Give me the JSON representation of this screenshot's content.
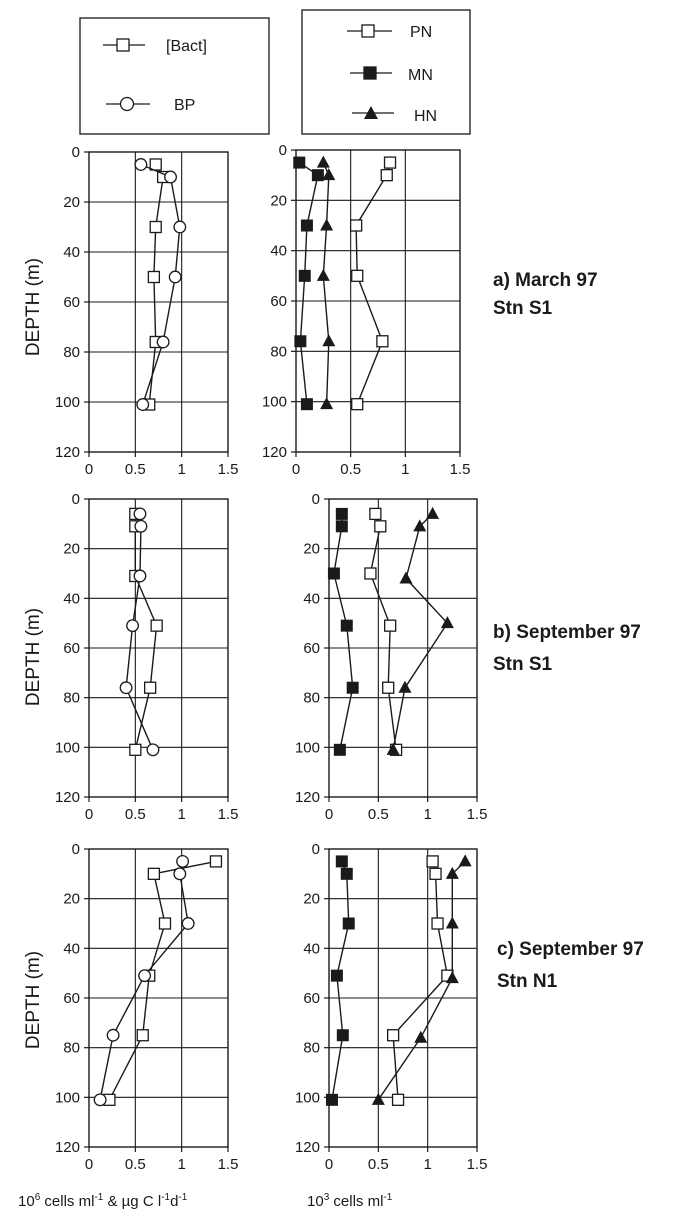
{
  "legend_left": [
    {
      "name": "[Bact]",
      "marker": "square-open"
    },
    {
      "name": "BP",
      "marker": "circle-open"
    }
  ],
  "legend_right": [
    {
      "name": "PN",
      "marker": "square-open"
    },
    {
      "name": "MN",
      "marker": "square-filled"
    },
    {
      "name": "HN",
      "marker": "triangle-filled"
    }
  ],
  "y_axis_label": "DEPTH (m)",
  "x_axis_label_left": {
    "pre": "10",
    "sup": "6",
    "text": " cells ml",
    "sup2": "-1",
    "text2": " & µg C l",
    "sup3": "-1",
    "text3": "d",
    "sup4": "-1"
  },
  "x_axis_label_right": {
    "pre": "10",
    "sup": "3",
    "text": " cells ml",
    "sup2": "-1"
  },
  "panel_labels": [
    {
      "line1": "a) March 97",
      "line2": "Stn S1"
    },
    {
      "line1": "b) September 97",
      "line2": "Stn S1"
    },
    {
      "line1": "c) September 97",
      "line2": "Stn N1"
    }
  ],
  "colors": {
    "ink": "#1a1a1a",
    "background": "#ffffff"
  },
  "chart_data": [
    {
      "type": "line",
      "panel": "a",
      "side": "left",
      "x_label": "",
      "y_label": "DEPTH (m)",
      "xlim": [
        0,
        1.5
      ],
      "ylim": [
        0,
        120
      ],
      "y_inverted": true,
      "xticks": [
        "0",
        "0.5",
        "1",
        "1.5"
      ],
      "yticks": [
        "0",
        "20",
        "40",
        "60",
        "80",
        "100",
        "120"
      ],
      "grid": true,
      "series": [
        {
          "name": "[Bact]",
          "marker": "square-open",
          "points": [
            [
              0.72,
              5
            ],
            [
              0.8,
              10
            ],
            [
              0.72,
              30
            ],
            [
              0.7,
              50
            ],
            [
              0.72,
              76
            ],
            [
              0.65,
              101
            ]
          ]
        },
        {
          "name": "BP",
          "marker": "circle-open",
          "points": [
            [
              0.56,
              5
            ],
            [
              0.88,
              10
            ],
            [
              0.98,
              30
            ],
            [
              0.93,
              50
            ],
            [
              0.8,
              76
            ],
            [
              0.58,
              101
            ]
          ]
        }
      ]
    },
    {
      "type": "line",
      "panel": "a",
      "side": "right",
      "x_label": "",
      "y_label": "",
      "xlim": [
        0,
        1.5
      ],
      "ylim": [
        0,
        120
      ],
      "y_inverted": true,
      "xticks": [
        "0",
        "0.5",
        "1",
        "1.5"
      ],
      "yticks": [
        "0",
        "20",
        "40",
        "60",
        "80",
        "100",
        "120"
      ],
      "grid": true,
      "series": [
        {
          "name": "PN",
          "marker": "square-open",
          "points": [
            [
              0.86,
              5
            ],
            [
              0.83,
              10
            ],
            [
              0.55,
              30
            ],
            [
              0.56,
              50
            ],
            [
              0.79,
              76
            ],
            [
              0.56,
              101
            ]
          ]
        },
        {
          "name": "MN",
          "marker": "square-filled",
          "points": [
            [
              0.03,
              5
            ],
            [
              0.2,
              10
            ],
            [
              0.1,
              30
            ],
            [
              0.08,
              50
            ],
            [
              0.04,
              76
            ],
            [
              0.1,
              101
            ]
          ]
        },
        {
          "name": "HN",
          "marker": "triangle-filled",
          "points": [
            [
              0.25,
              5
            ],
            [
              0.3,
              10
            ],
            [
              0.28,
              30
            ],
            [
              0.25,
              50
            ],
            [
              0.3,
              76
            ],
            [
              0.28,
              101
            ]
          ]
        }
      ]
    },
    {
      "type": "line",
      "panel": "b",
      "side": "left",
      "x_label": "",
      "y_label": "DEPTH (m)",
      "xlim": [
        0,
        1.5
      ],
      "ylim": [
        0,
        120
      ],
      "y_inverted": true,
      "xticks": [
        "0",
        "0.5",
        "1",
        "1.5"
      ],
      "yticks": [
        "0",
        "20",
        "40",
        "60",
        "80",
        "100",
        "120"
      ],
      "grid": true,
      "series": [
        {
          "name": "[Bact]",
          "marker": "square-open",
          "points": [
            [
              0.5,
              6
            ],
            [
              0.5,
              11
            ],
            [
              0.5,
              31
            ],
            [
              0.73,
              51
            ],
            [
              0.66,
              76
            ],
            [
              0.5,
              101
            ]
          ]
        },
        {
          "name": "BP",
          "marker": "circle-open",
          "points": [
            [
              0.55,
              6
            ],
            [
              0.56,
              11
            ],
            [
              0.55,
              31
            ],
            [
              0.47,
              51
            ],
            [
              0.4,
              76
            ],
            [
              0.69,
              101
            ]
          ]
        }
      ]
    },
    {
      "type": "line",
      "panel": "b",
      "side": "right",
      "x_label": "",
      "y_label": "",
      "xlim": [
        0,
        1.5
      ],
      "ylim": [
        0,
        120
      ],
      "y_inverted": true,
      "xticks": [
        "0",
        "0.5",
        "1",
        "1.5"
      ],
      "yticks": [
        "0",
        "20",
        "40",
        "60",
        "80",
        "100",
        "120"
      ],
      "grid": true,
      "series": [
        {
          "name": "PN",
          "marker": "square-open",
          "points": [
            [
              0.47,
              6
            ],
            [
              0.52,
              11
            ],
            [
              0.42,
              30
            ],
            [
              0.62,
              51
            ],
            [
              0.6,
              76
            ],
            [
              0.68,
              101
            ]
          ]
        },
        {
          "name": "MN",
          "marker": "square-filled",
          "points": [
            [
              0.13,
              6
            ],
            [
              0.13,
              11
            ],
            [
              0.05,
              30
            ],
            [
              0.18,
              51
            ],
            [
              0.24,
              76
            ],
            [
              0.11,
              101
            ]
          ]
        },
        {
          "name": "HN",
          "marker": "triangle-filled",
          "points": [
            [
              1.05,
              6
            ],
            [
              0.92,
              11
            ],
            [
              0.78,
              32
            ],
            [
              1.2,
              50
            ],
            [
              0.77,
              76
            ],
            [
              0.65,
              101
            ]
          ]
        }
      ]
    },
    {
      "type": "line",
      "panel": "c",
      "side": "left",
      "x_label": "",
      "y_label": "DEPTH (m)",
      "xlim": [
        0,
        1.5
      ],
      "ylim": [
        0,
        120
      ],
      "y_inverted": true,
      "xticks": [
        "0",
        "0.5",
        "1",
        "1.5"
      ],
      "yticks": [
        "0",
        "20",
        "40",
        "60",
        "80",
        "100",
        "120"
      ],
      "grid": true,
      "series": [
        {
          "name": "[Bact]",
          "marker": "square-open",
          "points": [
            [
              1.37,
              5
            ],
            [
              0.7,
              10
            ],
            [
              0.82,
              30
            ],
            [
              0.65,
              51
            ],
            [
              0.58,
              75
            ],
            [
              0.22,
              101
            ]
          ]
        },
        {
          "name": "BP",
          "marker": "circle-open",
          "points": [
            [
              1.01,
              5
            ],
            [
              0.98,
              10
            ],
            [
              1.07,
              30
            ],
            [
              0.6,
              51
            ],
            [
              0.26,
              75
            ],
            [
              0.12,
              101
            ]
          ]
        }
      ]
    },
    {
      "type": "line",
      "panel": "c",
      "side": "right",
      "x_label": "",
      "y_label": "",
      "xlim": [
        0,
        1.5
      ],
      "ylim": [
        0,
        120
      ],
      "y_inverted": true,
      "xticks": [
        "0",
        "0.5",
        "1",
        "1.5"
      ],
      "yticks": [
        "0",
        "20",
        "40",
        "60",
        "80",
        "100",
        "120"
      ],
      "grid": true,
      "series": [
        {
          "name": "PN",
          "marker": "square-open",
          "points": [
            [
              1.05,
              5
            ],
            [
              1.08,
              10
            ],
            [
              1.1,
              30
            ],
            [
              1.2,
              51
            ],
            [
              0.65,
              75
            ],
            [
              0.7,
              101
            ]
          ]
        },
        {
          "name": "MN",
          "marker": "square-filled",
          "points": [
            [
              0.13,
              5
            ],
            [
              0.18,
              10
            ],
            [
              0.2,
              30
            ],
            [
              0.08,
              51
            ],
            [
              0.14,
              75
            ],
            [
              0.03,
              101
            ]
          ]
        },
        {
          "name": "HN",
          "marker": "triangle-filled",
          "points": [
            [
              1.38,
              5
            ],
            [
              1.25,
              10
            ],
            [
              1.25,
              30
            ],
            [
              1.25,
              52
            ],
            [
              0.93,
              76
            ],
            [
              0.5,
              101
            ]
          ]
        }
      ]
    }
  ]
}
